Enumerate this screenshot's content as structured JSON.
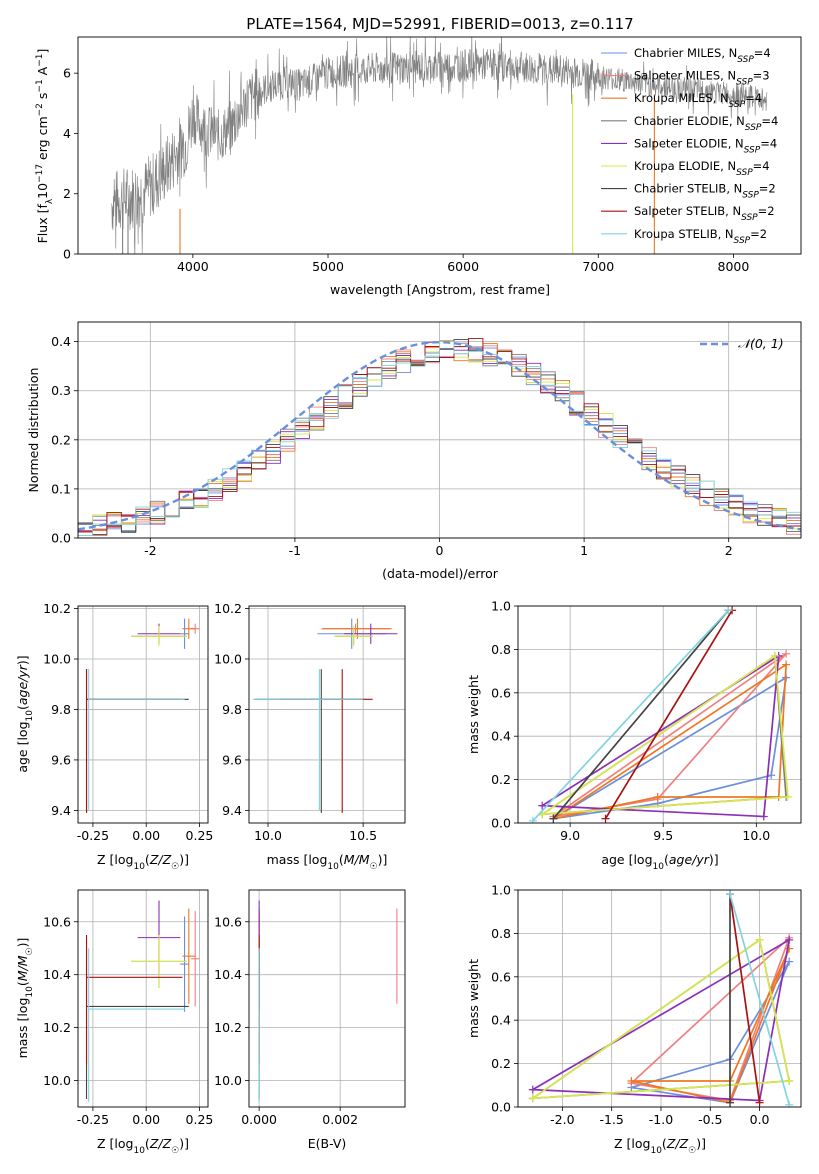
{
  "title": "PLATE=1564, MJD=52991, FIBERID=0013, z=0.117",
  "colors": {
    "Chabrier MILES": "#6a8fdc",
    "Salpeter MILES": "#f08080",
    "Kroupa MILES": "#ee7722",
    "Chabrier ELODIE": "#7e7e7e",
    "Salpeter ELODIE": "#8a2fb8",
    "Kroupa ELODIE": "#d8e84a",
    "Chabrier STELIB": "#444444",
    "Salpeter STELIB": "#aa1111",
    "Kroupa STELIB": "#7fd4e0",
    "normal": "#6a8fdc",
    "grid": "#b0b0b0"
  },
  "chart_data": [
    {
      "id": "spectrum",
      "type": "line",
      "xlabel": "wavelength [Angstrom, rest frame]",
      "ylabel": "Flux [f_λ 10^-17 erg cm^-2 s^-1 A^-1]",
      "xlim": [
        3150,
        8500
      ],
      "ylim": [
        0,
        7.2
      ],
      "xticks": [
        4000,
        5000,
        6000,
        7000,
        8000
      ],
      "yticks": [
        0,
        2,
        4,
        6
      ],
      "grid": false,
      "legend_position": "top-right",
      "legend": [
        {
          "main": "Chabrier MILES, N",
          "sub": "SSP",
          "tail": "=4",
          "model": "Chabrier MILES"
        },
        {
          "main": "Salpeter MILES, N",
          "sub": "SSP",
          "tail": "=3",
          "model": "Salpeter MILES"
        },
        {
          "main": "Kroupa MILES, N",
          "sub": "SSP",
          "tail": "=4",
          "model": "Kroupa MILES"
        },
        {
          "main": "Chabrier ELODIE, N",
          "sub": "SSP",
          "tail": "=4",
          "model": "Chabrier ELODIE"
        },
        {
          "main": "Salpeter ELODIE, N",
          "sub": "SSP",
          "tail": "=4",
          "model": "Salpeter ELODIE"
        },
        {
          "main": "Kroupa ELODIE, N",
          "sub": "SSP",
          "tail": "=4",
          "model": "Kroupa ELODIE"
        },
        {
          "main": "Chabrier STELIB, N",
          "sub": "SSP",
          "tail": "=2",
          "model": "Chabrier STELIB"
        },
        {
          "main": "Salpeter STELIB, N",
          "sub": "SSP",
          "tail": "=2",
          "model": "Salpeter STELIB"
        },
        {
          "main": "Kroupa STELIB, N",
          "sub": "SSP",
          "tail": "=2",
          "model": "Kroupa STELIB"
        }
      ],
      "continuum": {
        "x": [
          3400,
          3500,
          3600,
          3700,
          3800,
          3900,
          3950,
          4000,
          4100,
          4200,
          4300,
          4400,
          4500,
          4600,
          4700,
          4800,
          4900,
          5000,
          5200,
          5400,
          5600,
          5800,
          6000,
          6200,
          6400,
          6600,
          6800,
          7000,
          7200,
          7400,
          7600,
          7800,
          8000,
          8250
        ],
        "y": [
          1.7,
          1.85,
          1.95,
          2.3,
          2.8,
          3.5,
          3.7,
          4.6,
          4.1,
          3.9,
          4.3,
          5.1,
          5.4,
          5.6,
          5.7,
          5.6,
          5.8,
          6.0,
          6.1,
          6.15,
          6.2,
          6.2,
          6.25,
          6.3,
          6.2,
          6.1,
          6.05,
          5.9,
          5.75,
          5.6,
          5.5,
          5.4,
          5.3,
          5.1
        ]
      }
    },
    {
      "id": "residuals",
      "type": "bar",
      "xlabel": "(data-model)/error",
      "ylabel": "Normed distribution",
      "xlim": [
        -2.5,
        2.5
      ],
      "ylim": [
        0,
        0.44
      ],
      "xticks": [
        -2,
        -1,
        0,
        1,
        2
      ],
      "yticks": [
        0.0,
        0.1,
        0.2,
        0.3,
        0.4
      ],
      "grid": true,
      "legend_position": "top-right",
      "legend": [
        {
          "label": "𝒩(0, 1)"
        }
      ],
      "bin_width": 0.1
    },
    {
      "id": "age_vs_Z",
      "type": "scatter",
      "xlabel": "Z [log10(Z/Z☉)]",
      "ylabel": "age  [log10(age/yr)]",
      "xlim": [
        -0.32,
        0.29
      ],
      "ylim": [
        9.35,
        10.21
      ],
      "xticks": [
        -0.25,
        0.0,
        0.25
      ],
      "yticks": [
        9.4,
        9.6,
        9.8,
        10.0,
        10.2
      ],
      "grid": true
    },
    {
      "id": "age_vs_mass",
      "type": "scatter",
      "xlabel": "mass [log10(M/M☉)]",
      "ylabel": "",
      "xlim": [
        9.9,
        10.72
      ],
      "ylim": [
        9.35,
        10.21
      ],
      "xticks": [
        10.0,
        10.5
      ],
      "yticks": [
        9.4,
        9.6,
        9.8,
        10.0,
        10.2
      ],
      "grid": true
    },
    {
      "id": "weight_vs_age",
      "type": "line",
      "xlabel": "age  [log10(age/yr)]",
      "ylabel": "mass weight",
      "xlim": [
        8.72,
        10.24
      ],
      "ylim": [
        0,
        1.0
      ],
      "xticks": [
        9.0,
        9.5,
        10.0
      ],
      "yticks": [
        0.0,
        0.2,
        0.4,
        0.6,
        0.8,
        1.0
      ],
      "grid": true
    },
    {
      "id": "mass_vs_Z",
      "type": "scatter",
      "xlabel": "Z [log10(Z/Z☉)]",
      "ylabel": "mass [log10(M/M☉)]",
      "xlim": [
        -0.32,
        0.29
      ],
      "ylim": [
        9.9,
        10.72
      ],
      "xticks": [
        -0.25,
        0.0,
        0.25
      ],
      "yticks": [
        10.0,
        10.2,
        10.4,
        10.6
      ],
      "grid": true
    },
    {
      "id": "mass_vs_ebv",
      "type": "scatter",
      "xlabel": "E(B-V)",
      "ylabel": "",
      "xlim": [
        -0.00025,
        0.0036
      ],
      "ylim": [
        9.9,
        10.72
      ],
      "xticks": [
        0.0,
        0.002
      ],
      "yticks": [
        10.0,
        10.2,
        10.4,
        10.6
      ],
      "grid": true
    },
    {
      "id": "weight_vs_Z",
      "type": "line",
      "xlabel": "Z [log10(Z/Z☉)]",
      "ylabel": "mass weight",
      "xlim": [
        -2.45,
        0.42
      ],
      "ylim": [
        0,
        1.0
      ],
      "xticks": [
        -2.0,
        -1.5,
        -1.0,
        -0.5,
        0.0
      ],
      "yticks": [
        0.0,
        0.2,
        0.4,
        0.6,
        0.8,
        1.0
      ],
      "grid": true
    }
  ],
  "models": [
    {
      "name": "Chabrier MILES",
      "Z": 0.18,
      "Zerr": [
        0.02,
        0.02
      ],
      "age": 10.1,
      "ageerr": [
        0.06,
        0.06
      ],
      "mass": 10.44,
      "masserr": [
        0.18,
        0.18
      ],
      "ebv": 0.0,
      "ebverr": 0.0,
      "ssp": [
        {
          "age": 8.91,
          "Z": -0.3,
          "w": 0.02
        },
        {
          "age": 9.47,
          "Z": -1.3,
          "w": 0.09
        },
        {
          "age": 10.08,
          "Z": -0.3,
          "w": 0.22
        },
        {
          "age": 10.16,
          "Z": 0.3,
          "w": 0.67
        }
      ]
    },
    {
      "name": "Salpeter MILES",
      "Z": 0.23,
      "Zerr": [
        0.02,
        0.02
      ],
      "age": 10.12,
      "ageerr": [
        0.02,
        0.02
      ],
      "mass": 10.46,
      "masserr": [
        0.18,
        0.18
      ],
      "ebv": 0.0,
      "ebverr": 0.0,
      "ssp": [
        {
          "age": 8.91,
          "Z": -0.3,
          "w": 0.03
        },
        {
          "age": 9.47,
          "Z": -1.3,
          "w": 0.11
        },
        {
          "age": 10.16,
          "Z": 0.3,
          "w": 0.78
        }
      ]
    },
    {
      "name": "Kroupa MILES",
      "Z": 0.2,
      "Zerr": [
        0.03,
        0.03
      ],
      "age": 10.12,
      "ageerr": [
        0.04,
        0.04
      ],
      "mass": 10.47,
      "masserr": [
        0.18,
        0.18
      ],
      "ebv": 0.0,
      "ebverr": 0.0,
      "ssp": [
        {
          "age": 8.91,
          "Z": -0.3,
          "w": 0.02
        },
        {
          "age": 9.47,
          "Z": -1.3,
          "w": 0.12
        },
        {
          "age": 10.12,
          "Z": -0.3,
          "w": 0.12
        },
        {
          "age": 10.16,
          "Z": 0.3,
          "w": 0.73
        }
      ]
    },
    {
      "name": "Chabrier ELODIE",
      "Z": 0.06,
      "Zerr": [
        0.13,
        0.13
      ],
      "age": 10.09,
      "ageerr": [
        0.03,
        0.03
      ],
      "mass": 10.45,
      "masserr": [
        0.1,
        0.1
      ],
      "ebv": 0.0,
      "ebverr": 0.0,
      "ssp": [
        {
          "age": 8.85,
          "Z": -2.3,
          "w": 0.04
        },
        {
          "age": 10.1,
          "Z": 0.0,
          "w": 0.77
        },
        {
          "age": 10.16,
          "Z": 0.3,
          "w": 0.12
        }
      ]
    },
    {
      "name": "Salpeter ELODIE",
      "Z": 0.06,
      "Zerr": [
        0.1,
        0.1
      ],
      "age": 10.1,
      "ageerr": [
        0.04,
        0.04
      ],
      "mass": 10.54,
      "masserr": [
        0.14,
        0.14
      ],
      "ebv": 0.0,
      "ebverr": 0.0,
      "ssp": [
        {
          "age": 8.85,
          "Z": -2.3,
          "w": 0.08
        },
        {
          "age": 10.04,
          "Z": 0.0,
          "w": 0.03
        },
        {
          "age": 10.12,
          "Z": 0.3,
          "w": 0.77
        }
      ]
    },
    {
      "name": "Kroupa ELODIE",
      "Z": 0.06,
      "Zerr": [
        0.13,
        0.13
      ],
      "age": 10.09,
      "ageerr": [
        0.04,
        0.04
      ],
      "mass": 10.45,
      "masserr": [
        0.1,
        0.1
      ],
      "ebv": 0.0,
      "ebverr": 0.0,
      "ssp": [
        {
          "age": 8.85,
          "Z": -2.3,
          "w": 0.04
        },
        {
          "age": 10.1,
          "Z": 0.0,
          "w": 0.77
        },
        {
          "age": 10.17,
          "Z": 0.3,
          "w": 0.12
        }
      ]
    },
    {
      "name": "Chabrier STELIB",
      "Z": -0.28,
      "Zerr": [
        0.0,
        0.48
      ],
      "age": 9.84,
      "ageerr": [
        0.45,
        0.12
      ],
      "mass": 10.28,
      "masserr": [
        0.35,
        0.22
      ],
      "ebv": 0.0,
      "ebverr": 0.0,
      "ssp": [
        {
          "age": 8.91,
          "Z": -0.3,
          "w": 0.02
        },
        {
          "age": 9.85,
          "Z": -0.3,
          "w": 0.98
        }
      ]
    },
    {
      "name": "Salpeter STELIB",
      "Z": -0.28,
      "Zerr": [
        0.0,
        0.45
      ],
      "age": 9.84,
      "ageerr": [
        0.45,
        0.12
      ],
      "mass": 10.39,
      "masserr": [
        0.33,
        0.16
      ],
      "ebv": 0.0,
      "ebverr": 0.0,
      "ssp": [
        {
          "age": 9.19,
          "Z": 0.0,
          "w": 0.02
        },
        {
          "age": 9.87,
          "Z": -0.3,
          "w": 0.98
        }
      ]
    },
    {
      "name": "Kroupa STELIB",
      "Z": -0.27,
      "Zerr": [
        0.0,
        0.45
      ],
      "age": 9.84,
      "ageerr": [
        0.44,
        0.12
      ],
      "mass": 10.27,
      "masserr": [
        0.35,
        0.23
      ],
      "ebv": 0.0,
      "ebverr": 0.0,
      "ssp": [
        {
          "age": 8.8,
          "Z": 0.3,
          "w": 0.01
        },
        {
          "age": 9.85,
          "Z": -0.3,
          "w": 0.98
        }
      ]
    }
  ],
  "extra_ebv_point": {
    "name": "Salpeter MILES",
    "ebv": 0.0034,
    "mass": 10.47,
    "masserr": [
      0.18,
      0.18
    ]
  }
}
